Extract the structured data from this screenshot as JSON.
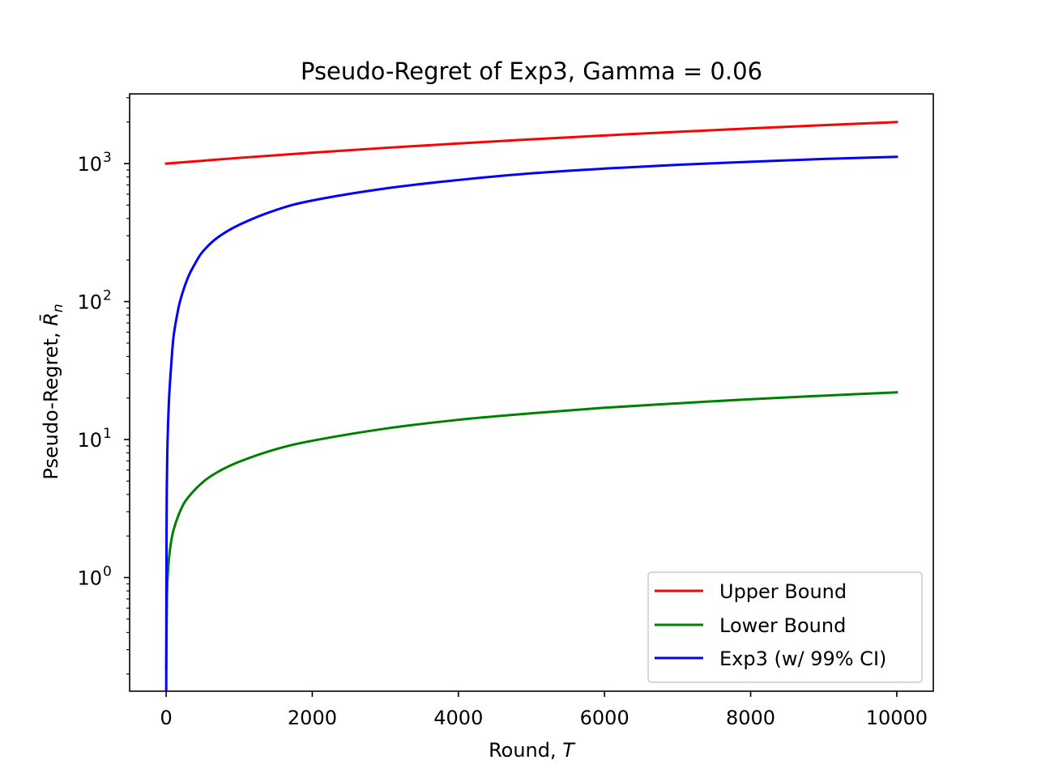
{
  "chart_data": {
    "type": "line",
    "title": "Pseudo-Regret of Exp3, Gamma = 0.06",
    "xlabel": "Round, T",
    "xlabel_prefix": "Round, ",
    "xlabel_var": "T",
    "ylabel": "Pseudo-Regret, R̄n",
    "ylabel_prefix": "Pseudo-Regret, ",
    "ylabel_var": "R̄",
    "ylabel_sub": "n",
    "xlim": [
      -500,
      10500
    ],
    "ylim": [
      0.15,
      3200
    ],
    "yscale": "log",
    "xticks": [
      0,
      2000,
      4000,
      6000,
      8000,
      10000
    ],
    "xtick_labels": [
      "0",
      "2000",
      "4000",
      "6000",
      "8000",
      "10000"
    ],
    "yticks": [
      1,
      10,
      100,
      1000
    ],
    "ytick_base": "10",
    "ytick_exponents": [
      "0",
      "1",
      "2",
      "3"
    ],
    "grid": false,
    "legend_position": "lower-right",
    "series": [
      {
        "name": "Upper Bound",
        "color": "#ff0000",
        "x": [
          0,
          1000,
          2000,
          3000,
          4000,
          5000,
          6000,
          7000,
          8000,
          9000,
          10000
        ],
        "y": [
          1000,
          1100,
          1200,
          1300,
          1400,
          1500,
          1600,
          1700,
          1800,
          1900,
          2000
        ]
      },
      {
        "name": "Lower Bound",
        "color": "#008000",
        "x": [
          1,
          10,
          25,
          50,
          100,
          200,
          300,
          500,
          700,
          1000,
          1500,
          2000,
          3000,
          4000,
          5000,
          6000,
          7000,
          8000,
          9000,
          10000
        ],
        "y": [
          0.22,
          0.7,
          1.1,
          1.56,
          2.2,
          3.1,
          3.8,
          4.9,
          5.8,
          6.9,
          8.5,
          9.8,
          12.0,
          13.9,
          15.5,
          17.0,
          18.3,
          19.6,
          20.8,
          22.0
        ]
      },
      {
        "name": "Exp3 (w/ 99% CI)",
        "color": "#0000ff",
        "x": [
          1,
          5,
          10,
          20,
          40,
          70,
          100,
          150,
          200,
          300,
          400,
          500,
          700,
          1000,
          1500,
          2000,
          3000,
          4000,
          5000,
          6000,
          7000,
          8000,
          9000,
          10000
        ],
        "y": [
          0.15,
          2,
          5,
          10,
          20,
          35,
          55,
          80,
          105,
          150,
          190,
          230,
          290,
          360,
          460,
          540,
          660,
          760,
          850,
          920,
          980,
          1030,
          1080,
          1120
        ]
      }
    ]
  }
}
